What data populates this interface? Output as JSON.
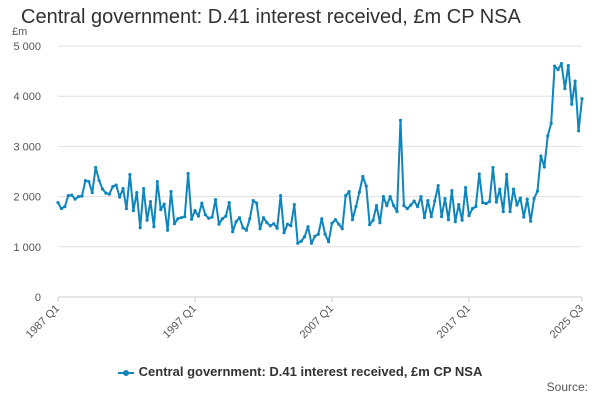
{
  "header": {
    "title": "Central government: D.41 interest received, £m CP NSA",
    "unit": "£m"
  },
  "legend": {
    "label": "Central government: D.41 interest received, £m CP NSA"
  },
  "footer": {
    "source": "Source:"
  },
  "colors": {
    "series": "#0F85BE",
    "grid": "#e0e0e0",
    "axis": "#cccccc",
    "text": "#555555"
  },
  "chart_data": {
    "type": "line",
    "title": "Central government: D.41 interest received, £m CP NSA",
    "ylabel": "£m",
    "xlabel": "",
    "ylim": [
      0,
      5000
    ],
    "yticks": [
      0,
      1000,
      2000,
      3000,
      4000,
      5000
    ],
    "ytick_labels": [
      "0",
      "1 000",
      "2 000",
      "3 000",
      "4 000",
      "5 000"
    ],
    "xticks": [
      "1987 Q1",
      "1997 Q1",
      "2007 Q1",
      "2017 Q1",
      "2025 Q3"
    ],
    "grid": true,
    "legend_position": "bottom",
    "series": [
      {
        "name": "Central government: D.41 interest received, £m CP NSA",
        "x_start": "1987 Q1",
        "frequency": "quarterly",
        "values": [
          1880,
          1760,
          1800,
          2020,
          2030,
          1950,
          2000,
          2010,
          2320,
          2300,
          2080,
          2580,
          2320,
          2150,
          2070,
          2050,
          2200,
          2230,
          1990,
          2160,
          1760,
          2440,
          1720,
          2080,
          1380,
          2160,
          1530,
          1900,
          1400,
          2300,
          1740,
          1850,
          1330,
          2100,
          1460,
          1560,
          1580,
          1600,
          2460,
          1550,
          1720,
          1610,
          1870,
          1640,
          1570,
          1590,
          1940,
          1450,
          1560,
          1610,
          1880,
          1300,
          1500,
          1580,
          1380,
          1330,
          1560,
          1920,
          1870,
          1360,
          1580,
          1480,
          1420,
          1460,
          1370,
          2020,
          1280,
          1450,
          1420,
          1840,
          1070,
          1110,
          1200,
          1400,
          1070,
          1210,
          1250,
          1560,
          1250,
          1100,
          1470,
          1540,
          1450,
          1360,
          2020,
          2100,
          1540,
          1800,
          2090,
          2400,
          2210,
          1440,
          1530,
          1820,
          1480,
          2000,
          1820,
          2000,
          1820,
          1700,
          3520,
          1820,
          1760,
          1830,
          1910,
          1800,
          2000,
          1580,
          1920,
          1600,
          1910,
          2220,
          1600,
          1960,
          1540,
          2120,
          1500,
          1840,
          1530,
          2180,
          1620,
          1760,
          1800,
          2450,
          1880,
          1860,
          1900,
          2580,
          1890,
          2150,
          1700,
          2440,
          1700,
          2150,
          1830,
          1970,
          1590,
          1950,
          1510,
          1960,
          2110,
          2810,
          2590,
          3210,
          3460,
          4600,
          4530,
          4650,
          4150,
          4610,
          3840,
          4300,
          3310,
          3950
        ]
      }
    ]
  }
}
